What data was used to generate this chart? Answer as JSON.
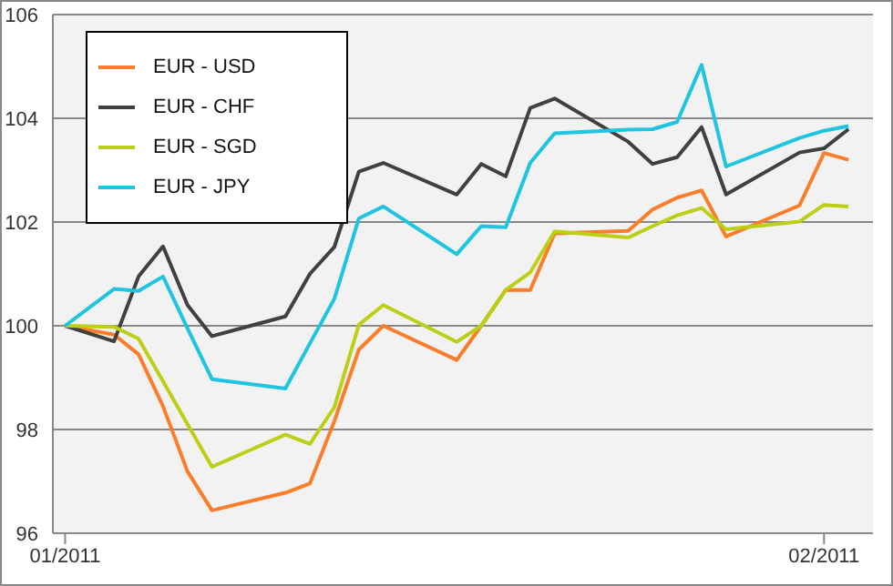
{
  "chart_data": {
    "type": "line",
    "x": [
      "2011-01-01",
      "2011-01-03",
      "2011-01-04",
      "2011-01-05",
      "2011-01-06",
      "2011-01-07",
      "2011-01-10",
      "2011-01-11",
      "2011-01-12",
      "2011-01-13",
      "2011-01-14",
      "2011-01-17",
      "2011-01-18",
      "2011-01-19",
      "2011-01-20",
      "2011-01-21",
      "2011-01-24",
      "2011-01-25",
      "2011-01-26",
      "2011-01-27",
      "2011-01-28",
      "2011-01-31",
      "2011-02-01",
      "2011-02-02"
    ],
    "series": [
      {
        "name": "EUR - USD",
        "color": "#fb7d2a",
        "values": [
          100,
          99.83,
          99.45,
          98.45,
          97.19,
          96.44,
          96.78,
          96.96,
          98.16,
          99.54,
          100.0,
          99.34,
          100.0,
          100.69,
          100.69,
          101.78,
          101.83,
          102.24,
          102.47,
          102.61,
          101.72,
          102.32,
          103.33,
          103.2
        ]
      },
      {
        "name": "EUR - CHF",
        "color": "#404040",
        "values": [
          100,
          99.7,
          100.95,
          101.53,
          100.4,
          99.8,
          100.18,
          101.0,
          101.52,
          102.97,
          103.14,
          102.53,
          103.12,
          102.88,
          104.2,
          104.38,
          103.55,
          103.12,
          103.25,
          103.83,
          102.53,
          103.34,
          103.42,
          103.79
        ]
      },
      {
        "name": "EUR - SGD",
        "color": "#bccf16",
        "values": [
          100,
          99.98,
          99.75,
          98.93,
          98.1,
          97.28,
          97.9,
          97.72,
          98.43,
          100.02,
          100.4,
          99.69,
          100.0,
          100.69,
          101.03,
          101.82,
          101.7,
          101.92,
          102.13,
          102.27,
          101.86,
          102.01,
          102.33,
          102.3
        ]
      },
      {
        "name": "EUR - JPY",
        "color": "#1ec4e0",
        "values": [
          100,
          100.71,
          100.67,
          100.95,
          99.95,
          98.97,
          98.79,
          99.66,
          100.52,
          102.07,
          102.3,
          101.38,
          101.92,
          101.9,
          103.14,
          103.71,
          103.78,
          103.79,
          103.93,
          105.03,
          103.07,
          103.62,
          103.76,
          103.85
        ]
      }
    ],
    "xlim": [
      "2010-12-31T12:00",
      "2011-02-03"
    ],
    "xticks": [
      {
        "value": "2011-01-01",
        "label": "01/2011"
      },
      {
        "value": "2011-02-01",
        "label": "02/2011"
      }
    ],
    "ylim": [
      96,
      106
    ],
    "yticks": [
      96,
      98,
      100,
      102,
      104,
      106
    ],
    "grid": "y",
    "legend": "top left",
    "marker": "none",
    "line_style": "solid"
  }
}
